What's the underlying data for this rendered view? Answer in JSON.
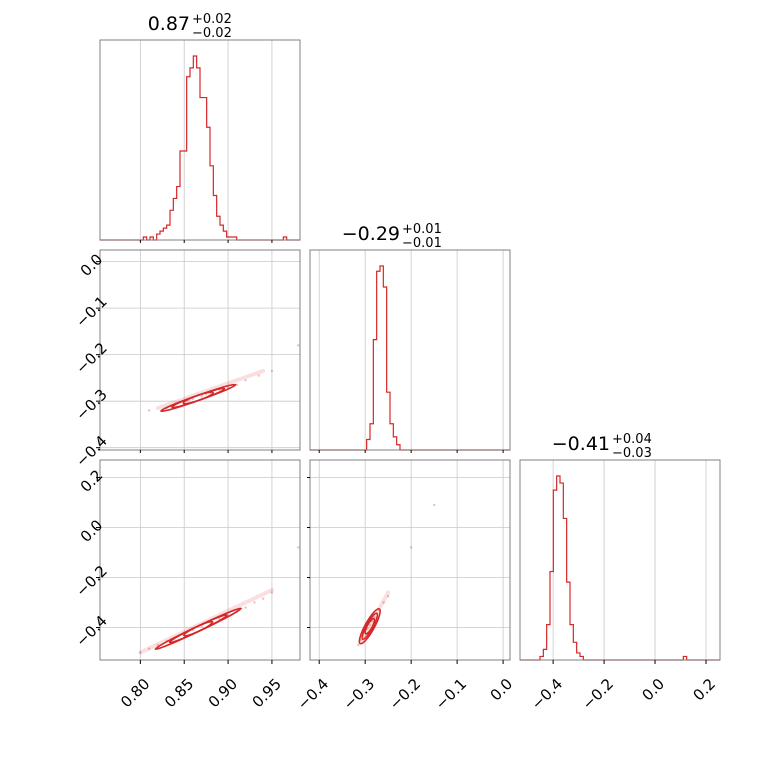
{
  "chart_data": {
    "type": "corner",
    "color": "#d62728",
    "grid": true,
    "diagonal": [
      {
        "title": {
          "value": "0.87",
          "plus": "+0.02",
          "minus": "−0.02"
        },
        "range": [
          0.754,
          0.982
        ],
        "ticks": [
          {
            "value": 0.8,
            "label": "0.80"
          },
          {
            "value": 0.85,
            "label": "0.85"
          },
          {
            "value": 0.9,
            "label": "0.90"
          },
          {
            "value": 0.95,
            "label": "0.95"
          }
        ],
        "hist": [
          0,
          0,
          0,
          0,
          0,
          0,
          0,
          0,
          0,
          0,
          0,
          0,
          0,
          1,
          0,
          1,
          0,
          2,
          3,
          4,
          5,
          10,
          14,
          18,
          30,
          30,
          55,
          58,
          62,
          58,
          48,
          48,
          38,
          25,
          15,
          8,
          5,
          3,
          1,
          1,
          1,
          0,
          0,
          0,
          0,
          0,
          0,
          0,
          0,
          0,
          0,
          0,
          0,
          0,
          0,
          1,
          0,
          0,
          0,
          0
        ]
      },
      {
        "title": {
          "value": "−0.29",
          "plus": "+0.01",
          "minus": "−0.01"
        },
        "range": [
          -0.42,
          0.015
        ],
        "ticks": [
          {
            "value": -0.4,
            "label": "−0.4"
          },
          {
            "value": -0.3,
            "label": "−0.3"
          },
          {
            "value": -0.2,
            "label": "−0.2"
          },
          {
            "value": -0.1,
            "label": "−0.1"
          },
          {
            "value": 0.0,
            "label": "0.0"
          }
        ],
        "hist": [
          0,
          0,
          0,
          0,
          0,
          0,
          0,
          0,
          0,
          0,
          0,
          0,
          0,
          0,
          0,
          0,
          0,
          4,
          10,
          42,
          68,
          70,
          62,
          22,
          10,
          5,
          2,
          0,
          0,
          0,
          0,
          0,
          0,
          0,
          0,
          0,
          0,
          0,
          0,
          0,
          0,
          0,
          0,
          0,
          0,
          0,
          0,
          0,
          0,
          0,
          0,
          0,
          0,
          0,
          0,
          0,
          0,
          0,
          0,
          0
        ]
      },
      {
        "title": {
          "value": "−0.41",
          "plus": "+0.04",
          "minus": "−0.03"
        },
        "range": [
          -0.53,
          0.255
        ],
        "ticks": [
          {
            "value": -0.4,
            "label": "−0.4"
          },
          {
            "value": -0.2,
            "label": "−0.2"
          },
          {
            "value": 0.0,
            "label": "0.0"
          },
          {
            "value": 0.2,
            "label": "0.2"
          }
        ],
        "hist": [
          0,
          0,
          0,
          0,
          0,
          0,
          1,
          3,
          10,
          25,
          48,
          52,
          50,
          40,
          22,
          10,
          5,
          2,
          1,
          0,
          0,
          0,
          0,
          0,
          0,
          0,
          0,
          0,
          0,
          0,
          0,
          0,
          0,
          0,
          0,
          0,
          0,
          0,
          0,
          0,
          0,
          0,
          0,
          0,
          0,
          0,
          0,
          0,
          0,
          1,
          0,
          0,
          0,
          0,
          0,
          0,
          0,
          0,
          0,
          0
        ]
      }
    ],
    "ylim": [
      null,
      [
        -0.405,
        0.025
      ],
      [
        -0.53,
        0.27
      ]
    ],
    "yticks": [
      null,
      [
        {
          "value": 0.0,
          "label": "0.0"
        },
        {
          "value": -0.1,
          "label": "−0.1"
        },
        {
          "value": -0.2,
          "label": "−0.2"
        },
        {
          "value": -0.3,
          "label": "−0.3"
        },
        {
          "value": -0.4,
          "label": "−0.4"
        }
      ],
      [
        {
          "value": 0.2,
          "label": "0.2"
        },
        {
          "value": 0.0,
          "label": "0.0"
        },
        {
          "value": -0.2,
          "label": "−0.2"
        },
        {
          "value": -0.4,
          "label": "−0.4"
        }
      ]
    ],
    "pairs": [
      {
        "row": 1,
        "col": 0,
        "trend": {
          "x0": 0.82,
          "y0": -0.315,
          "x1": 0.94,
          "y1": -0.235
        },
        "points": [
          [
            0.81,
            -0.32
          ],
          [
            0.83,
            -0.315
          ],
          [
            0.835,
            -0.31
          ],
          [
            0.84,
            -0.305
          ],
          [
            0.85,
            -0.3
          ],
          [
            0.855,
            -0.298
          ],
          [
            0.86,
            -0.295
          ],
          [
            0.87,
            -0.29
          ],
          [
            0.875,
            -0.285
          ],
          [
            0.88,
            -0.282
          ],
          [
            0.89,
            -0.275
          ],
          [
            0.9,
            -0.27
          ],
          [
            0.91,
            -0.265
          ],
          [
            0.92,
            -0.255
          ],
          [
            0.935,
            -0.245
          ],
          [
            0.95,
            -0.235
          ],
          [
            0.98,
            -0.18
          ]
        ],
        "contours": [
          {
            "cx": 0.866,
            "cy": -0.293,
            "rx": 0.02,
            "ry": 0.004
          },
          {
            "cx": 0.866,
            "cy": -0.293,
            "rx": 0.035,
            "ry": 0.007
          },
          {
            "cx": 0.866,
            "cy": -0.293,
            "rx": 0.05,
            "ry": 0.009
          }
        ]
      },
      {
        "row": 2,
        "col": 0,
        "trend": {
          "x0": 0.8,
          "y0": -0.5,
          "x1": 0.95,
          "y1": -0.25
        },
        "points": [
          [
            0.8,
            -0.5
          ],
          [
            0.81,
            -0.485
          ],
          [
            0.82,
            -0.47
          ],
          [
            0.83,
            -0.455
          ],
          [
            0.84,
            -0.44
          ],
          [
            0.85,
            -0.425
          ],
          [
            0.86,
            -0.41
          ],
          [
            0.87,
            -0.395
          ],
          [
            0.88,
            -0.38
          ],
          [
            0.89,
            -0.365
          ],
          [
            0.9,
            -0.35
          ],
          [
            0.91,
            -0.335
          ],
          [
            0.92,
            -0.32
          ],
          [
            0.93,
            -0.3
          ],
          [
            0.94,
            -0.285
          ],
          [
            0.95,
            -0.26
          ],
          [
            0.98,
            -0.08
          ]
        ],
        "contours": [
          {
            "cx": 0.866,
            "cy": -0.405,
            "rx": 0.02,
            "ry": 0.01
          },
          {
            "cx": 0.866,
            "cy": -0.405,
            "rx": 0.04,
            "ry": 0.016
          },
          {
            "cx": 0.866,
            "cy": -0.405,
            "rx": 0.06,
            "ry": 0.02
          }
        ]
      },
      {
        "row": 2,
        "col": 1,
        "trend": {
          "x0": -0.31,
          "y0": -0.46,
          "x1": -0.25,
          "y1": -0.26
        },
        "points": [
          [
            -0.315,
            -0.47
          ],
          [
            -0.31,
            -0.45
          ],
          [
            -0.305,
            -0.435
          ],
          [
            -0.3,
            -0.42
          ],
          [
            -0.295,
            -0.405
          ],
          [
            -0.29,
            -0.39
          ],
          [
            -0.285,
            -0.375
          ],
          [
            -0.28,
            -0.36
          ],
          [
            -0.275,
            -0.345
          ],
          [
            -0.27,
            -0.33
          ],
          [
            -0.26,
            -0.3
          ],
          [
            -0.25,
            -0.275
          ],
          [
            -0.2,
            -0.08
          ],
          [
            -0.15,
            0.09
          ]
        ],
        "contours": [
          {
            "cx": -0.29,
            "cy": -0.395,
            "rx": 0.008,
            "ry": 0.035
          },
          {
            "cx": -0.29,
            "cy": -0.395,
            "rx": 0.014,
            "ry": 0.06
          },
          {
            "cx": -0.29,
            "cy": -0.395,
            "rx": 0.02,
            "ry": 0.08
          }
        ]
      }
    ]
  }
}
